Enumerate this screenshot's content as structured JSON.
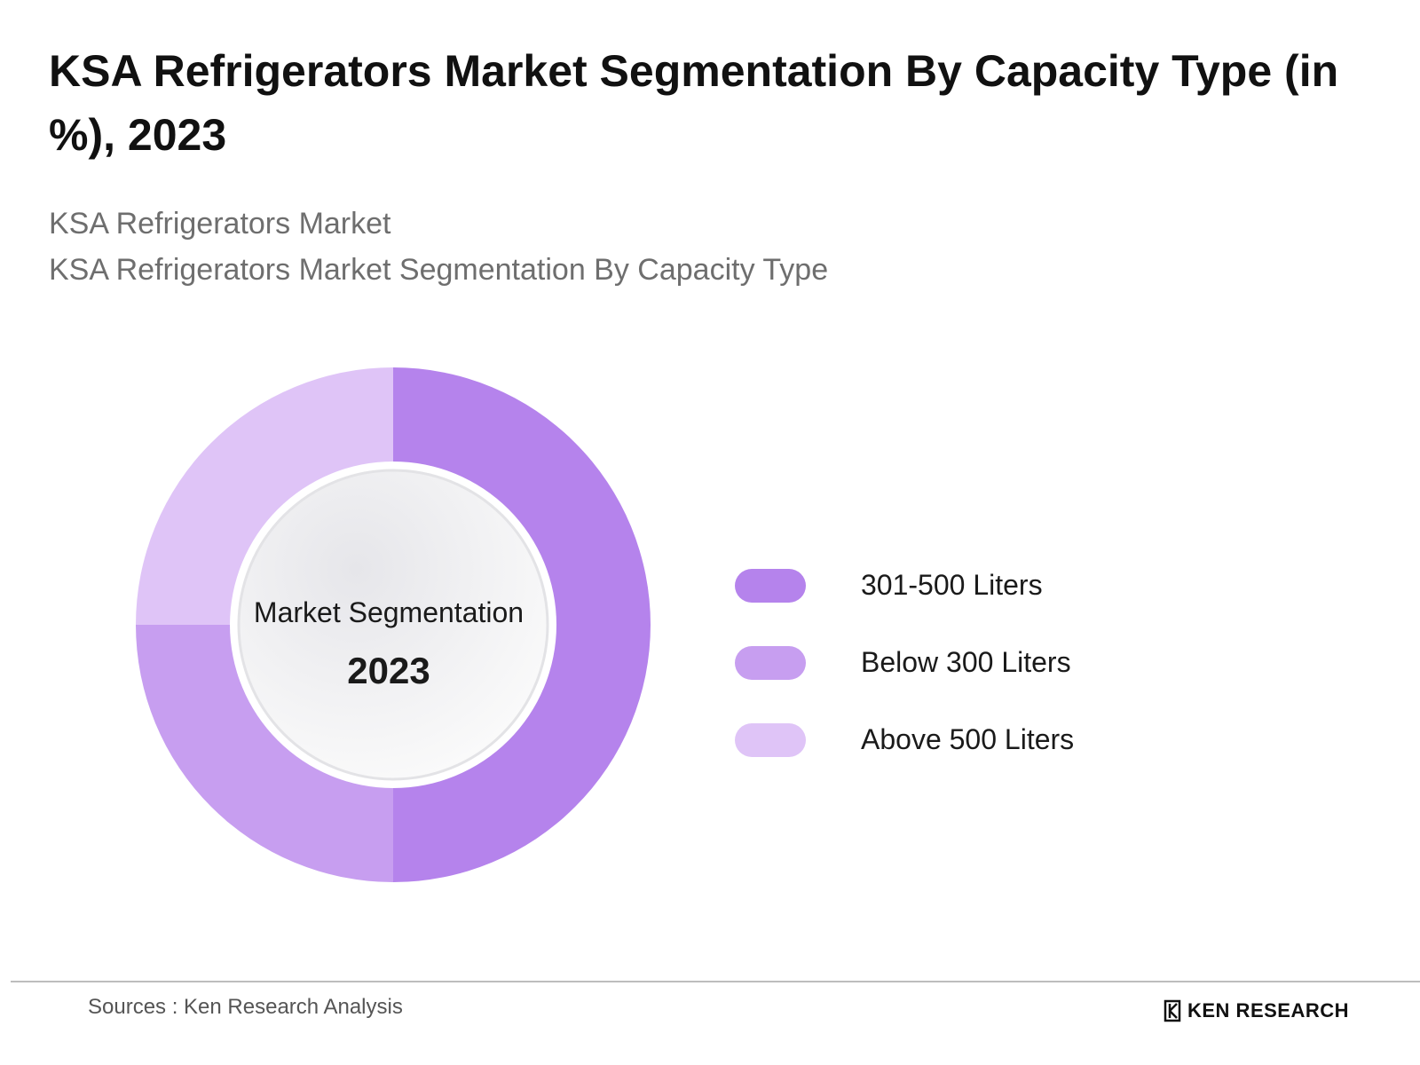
{
  "title": "KSA Refrigerators Market Segmentation By Capacity Type (in %), 2023",
  "subtitle_lines": [
    "KSA Refrigerators Market",
    "KSA Refrigerators Market Segmentation By Capacity Type"
  ],
  "center": {
    "label": "Market Segmentation",
    "year": "2023"
  },
  "colors": {
    "accent": "#b583ec",
    "series": [
      "#b583ec",
      "#c79ef0",
      "#dfc4f7"
    ]
  },
  "chart_data": {
    "type": "pie",
    "style": "donut",
    "title": "KSA Refrigerators Market Segmentation By Capacity Type (in %), 2023",
    "categories": [
      "301-500 Liters",
      "Below 300 Liters",
      "Above 500 Liters"
    ],
    "values": [
      50,
      25,
      25
    ],
    "unit": "%",
    "legend_position": "right",
    "start_angle": "12 o'clock, clockwise"
  },
  "footer": {
    "source": "Sources : Ken Research Analysis",
    "logo_text": "KEN RESEARCH"
  }
}
